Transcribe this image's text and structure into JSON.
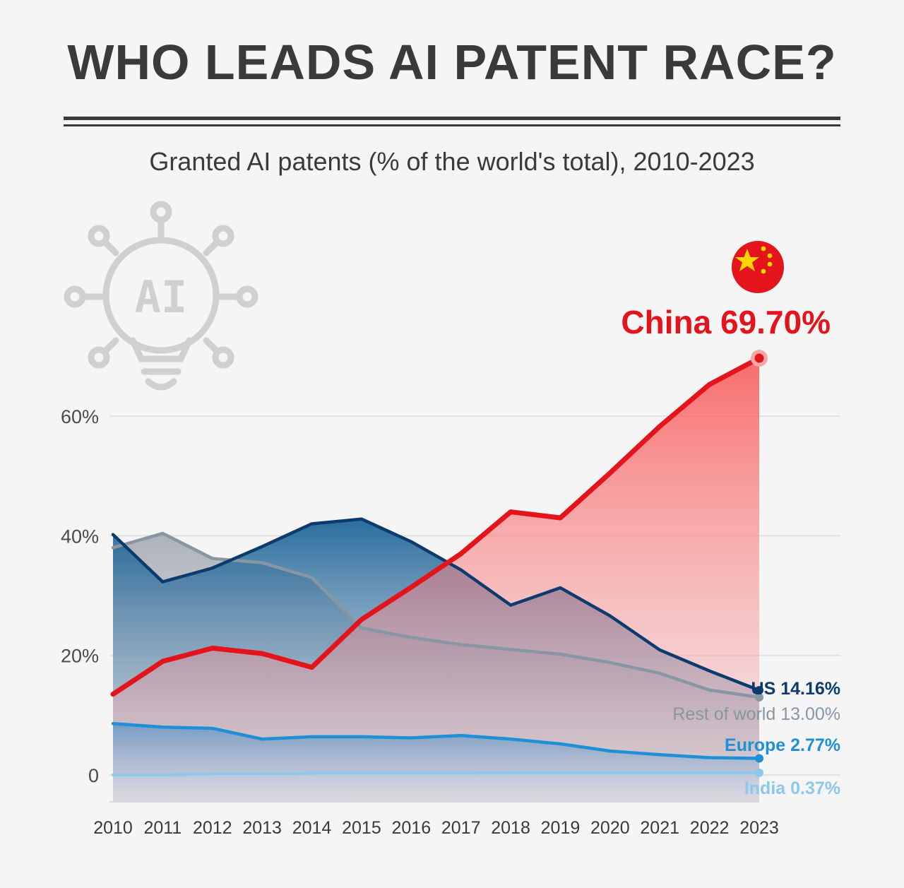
{
  "title": "WHO LEADS AI PATENT RACE?",
  "subtitle": "Granted AI patents (% of the world's total), 2010-2023",
  "icon": {
    "name": "ai-lightbulb-icon",
    "text": "AI"
  },
  "chart_data": {
    "type": "area",
    "categories": [
      "2010",
      "2011",
      "2012",
      "2013",
      "2014",
      "2015",
      "2016",
      "2017",
      "2018",
      "2019",
      "2020",
      "2021",
      "2022",
      "2023"
    ],
    "ylim": [
      0,
      70
    ],
    "y_ticks": [
      {
        "value": 0,
        "label": "0"
      },
      {
        "value": 20,
        "label": "20%"
      },
      {
        "value": 40,
        "label": "40%"
      },
      {
        "value": 60,
        "label": "60%"
      }
    ],
    "grid": true,
    "series": [
      {
        "name": "Rest of world",
        "label": "Rest of world 13.00%",
        "color": "#8896a3",
        "values": [
          38.0,
          40.4,
          36.2,
          35.5,
          33.0,
          24.6,
          23.0,
          21.8,
          21.0,
          20.2,
          18.8,
          17.0,
          14.2,
          13.0
        ]
      },
      {
        "name": "US",
        "label": "US 14.16%",
        "color": "#0d3b6e",
        "values": [
          40.2,
          32.3,
          34.6,
          38.2,
          42.0,
          42.8,
          39.0,
          34.3,
          28.4,
          31.3,
          26.6,
          20.9,
          17.4,
          14.16
        ]
      },
      {
        "name": "Europe",
        "label": "Europe 2.77%",
        "color": "#1e90d6",
        "values": [
          8.6,
          8.0,
          7.8,
          6.0,
          6.4,
          6.4,
          6.2,
          6.6,
          6.0,
          5.2,
          4.0,
          3.4,
          2.9,
          2.77
        ]
      },
      {
        "name": "India",
        "label": "India 0.37%",
        "color": "#8cc8ec",
        "values": [
          0.0,
          0.0,
          0.2,
          0.2,
          0.3,
          0.3,
          0.3,
          0.3,
          0.4,
          0.4,
          0.4,
          0.4,
          0.4,
          0.37
        ]
      },
      {
        "name": "China",
        "label": "China 69.70%",
        "color": "#e3141b",
        "values": [
          13.5,
          19.0,
          21.2,
          20.3,
          18.0,
          26.0,
          31.4,
          37.0,
          44.0,
          43.0,
          50.5,
          58.3,
          65.3,
          69.7
        ]
      }
    ]
  }
}
